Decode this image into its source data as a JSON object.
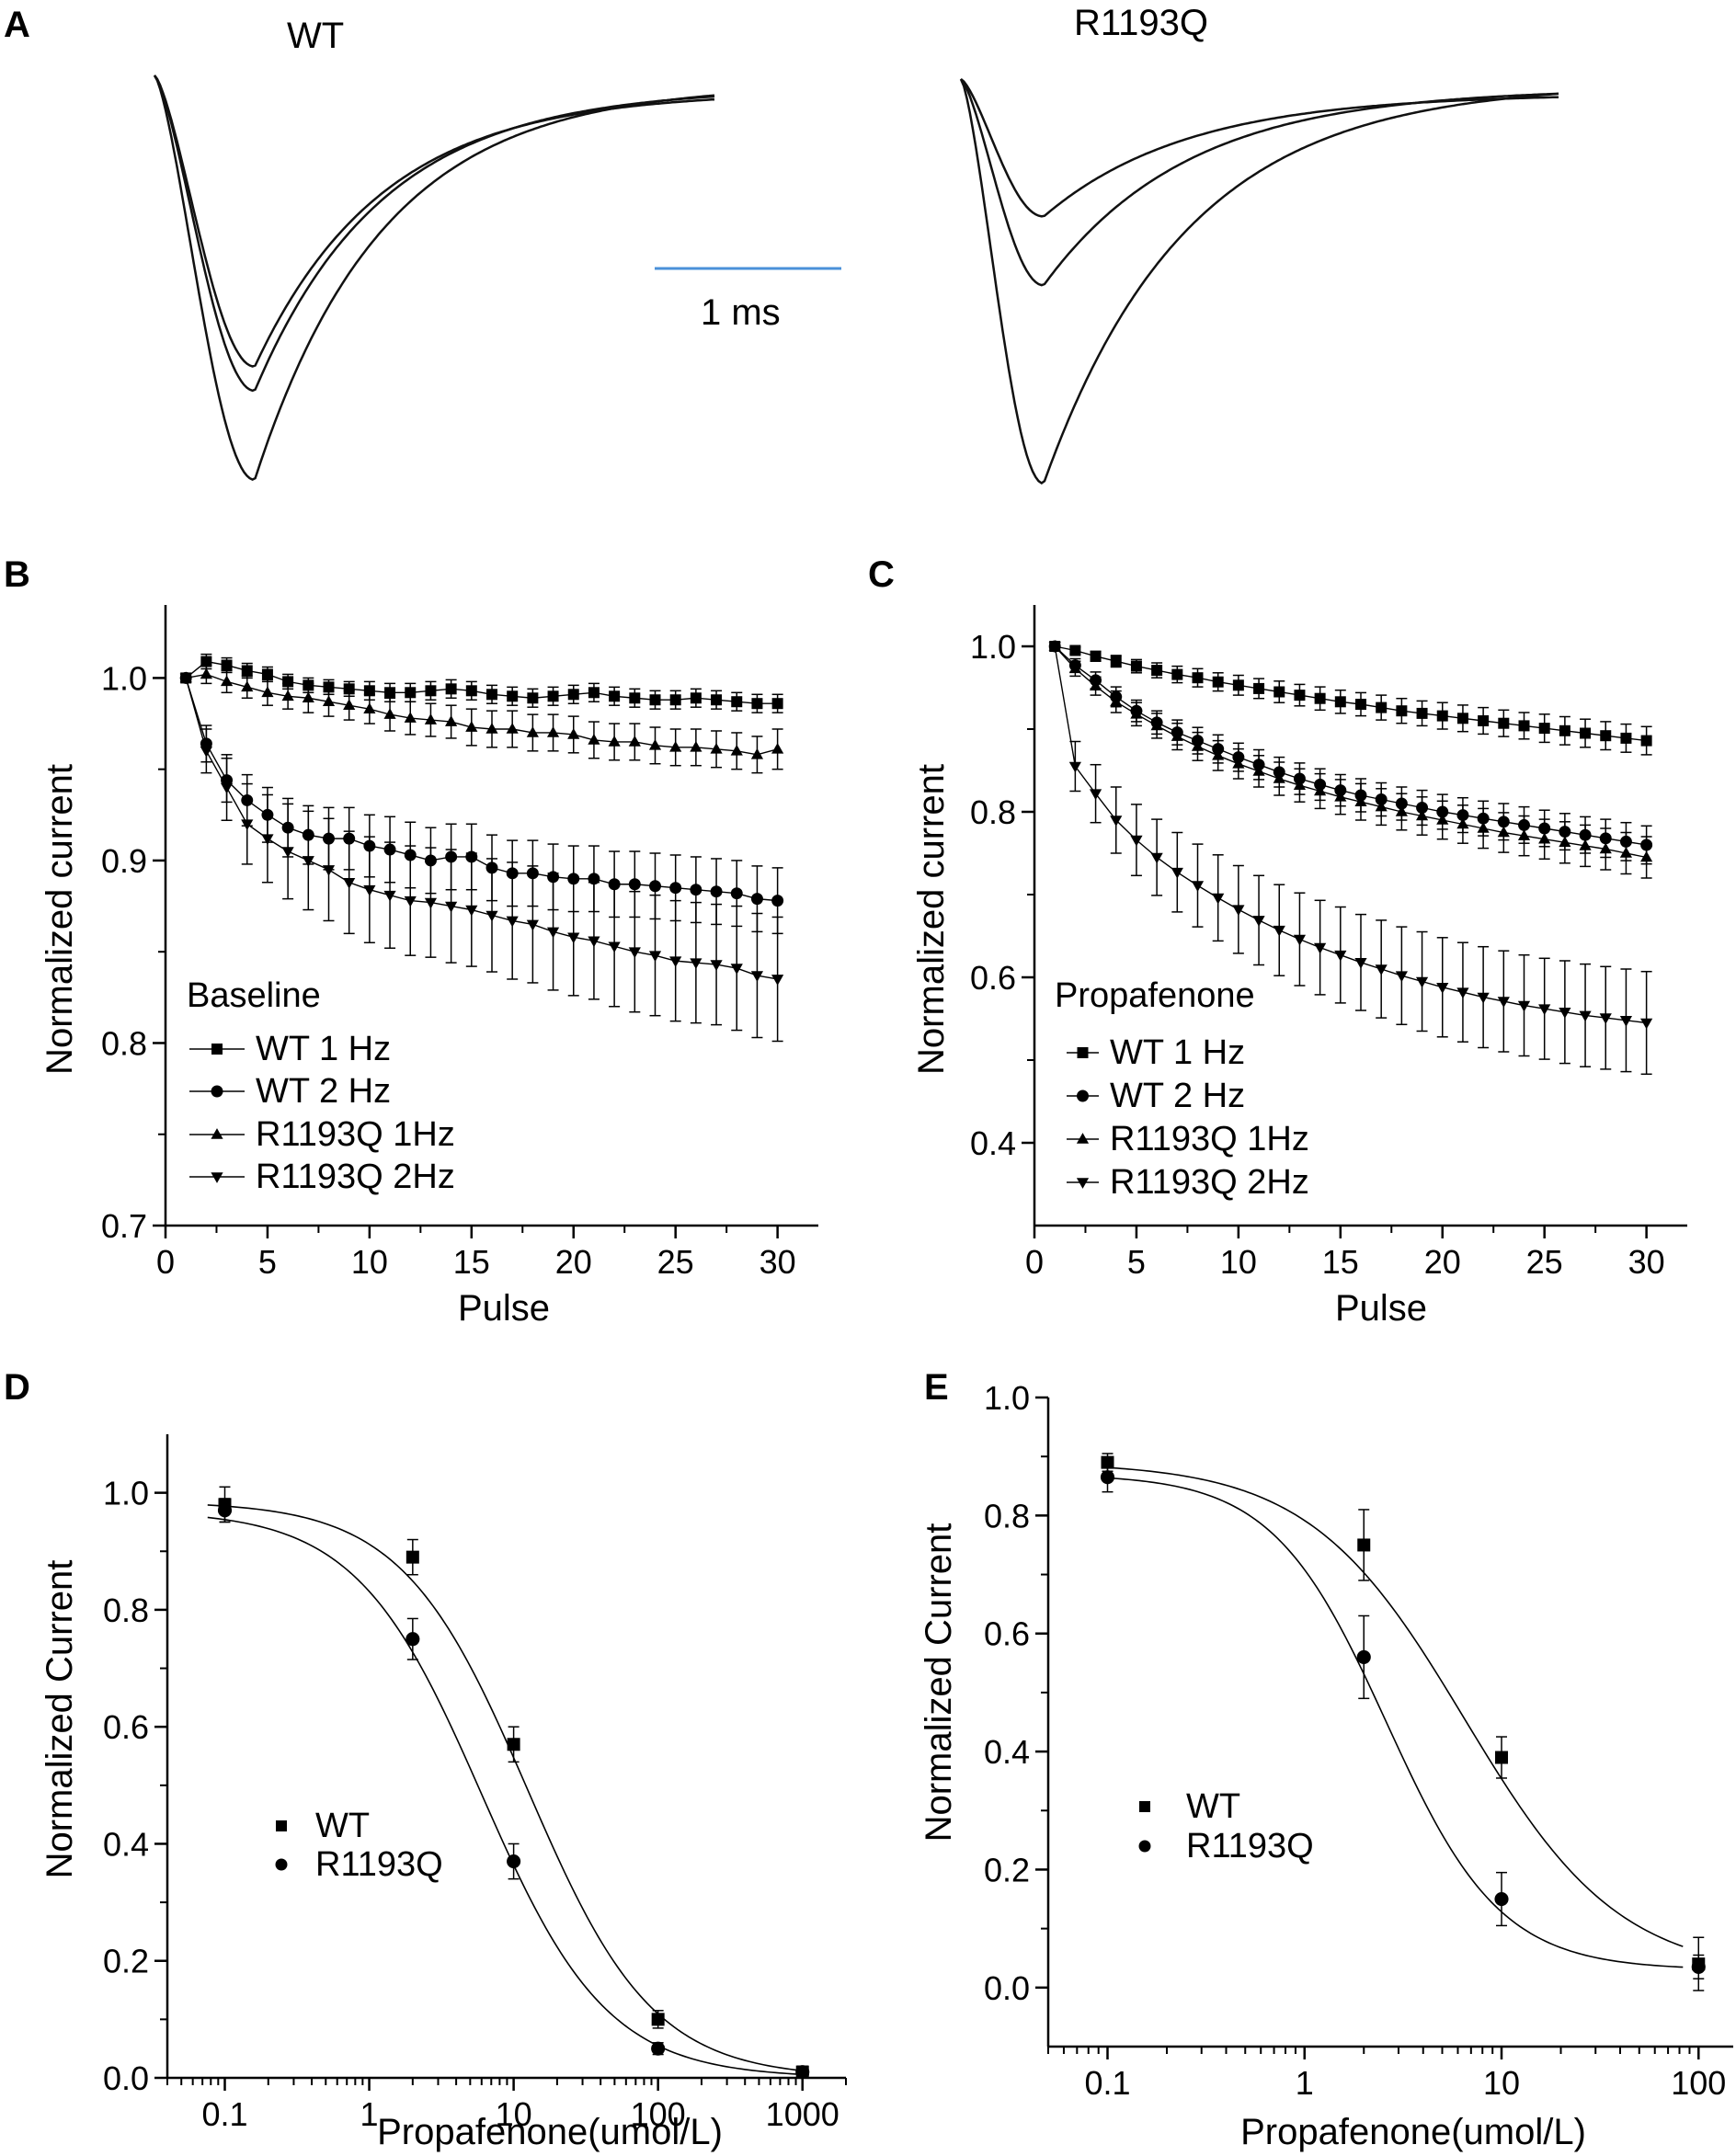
{
  "figure": {
    "panels": [
      {
        "id": "A",
        "letter": "A"
      },
      {
        "id": "B",
        "letter": "B"
      },
      {
        "id": "C",
        "letter": "C"
      },
      {
        "id": "D",
        "letter": "D"
      },
      {
        "id": "E",
        "letter": "E"
      }
    ]
  },
  "panel_a": {
    "wt_title": "WT",
    "mutant_title": "R1193Q",
    "scalebar_label": "1 ms",
    "scalebar_color": "#4a90d9",
    "wt_trace_peaks": [
      1.0,
      0.78,
      0.72
    ],
    "mutant_trace_peaks": [
      1.0,
      0.51,
      0.34
    ]
  },
  "chart_data": [
    {
      "id": "B",
      "type": "line",
      "title": "",
      "xlabel": "Pulse",
      "ylabel": "Normalized current",
      "xlim": [
        0,
        32
      ],
      "ylim": [
        0.7,
        1.04
      ],
      "xticks": [
        0,
        5,
        10,
        15,
        20,
        25,
        30
      ],
      "yticks": [
        0.7,
        0.8,
        0.9,
        1.0
      ],
      "ytick_labels": [
        "0.7",
        "0.8",
        "0.9",
        "1.0"
      ],
      "legend_title": "Baseline",
      "legend_position": "bottom-left",
      "x": [
        1,
        2,
        3,
        4,
        5,
        6,
        7,
        8,
        9,
        10,
        11,
        12,
        13,
        14,
        15,
        16,
        17,
        18,
        19,
        20,
        21,
        22,
        23,
        24,
        25,
        26,
        27,
        28,
        29,
        30
      ],
      "series": [
        {
          "name": "WT 1 Hz",
          "marker": "square",
          "values": [
            1.0,
            1.009,
            1.007,
            1.004,
            1.002,
            0.998,
            0.996,
            0.995,
            0.994,
            0.993,
            0.992,
            0.992,
            0.993,
            0.994,
            0.993,
            0.991,
            0.99,
            0.989,
            0.99,
            0.991,
            0.992,
            0.99,
            0.989,
            0.988,
            0.988,
            0.989,
            0.988,
            0.987,
            0.986,
            0.986
          ],
          "errors": [
            0,
            0.004,
            0.004,
            0.004,
            0.004,
            0.004,
            0.004,
            0.004,
            0.004,
            0.005,
            0.005,
            0.005,
            0.005,
            0.005,
            0.005,
            0.005,
            0.005,
            0.005,
            0.005,
            0.005,
            0.005,
            0.005,
            0.005,
            0.005,
            0.005,
            0.005,
            0.005,
            0.005,
            0.005,
            0.005
          ]
        },
        {
          "name": "WT 2 Hz",
          "marker": "circle",
          "values": [
            1.0,
            0.964,
            0.944,
            0.933,
            0.925,
            0.918,
            0.914,
            0.912,
            0.912,
            0.908,
            0.906,
            0.903,
            0.9,
            0.902,
            0.902,
            0.896,
            0.893,
            0.893,
            0.891,
            0.89,
            0.89,
            0.887,
            0.887,
            0.886,
            0.885,
            0.884,
            0.883,
            0.882,
            0.879,
            0.878
          ],
          "errors": [
            0,
            0.01,
            0.012,
            0.014,
            0.015,
            0.016,
            0.016,
            0.017,
            0.017,
            0.017,
            0.018,
            0.018,
            0.018,
            0.018,
            0.018,
            0.018,
            0.018,
            0.018,
            0.018,
            0.018,
            0.018,
            0.018,
            0.018,
            0.018,
            0.018,
            0.018,
            0.018,
            0.018,
            0.018,
            0.018
          ]
        },
        {
          "name": "R1193Q 1Hz",
          "marker": "triangle-up",
          "values": [
            1.0,
            1.002,
            0.998,
            0.995,
            0.992,
            0.99,
            0.989,
            0.987,
            0.985,
            0.983,
            0.98,
            0.978,
            0.977,
            0.976,
            0.973,
            0.972,
            0.972,
            0.97,
            0.97,
            0.969,
            0.966,
            0.965,
            0.965,
            0.963,
            0.962,
            0.962,
            0.961,
            0.96,
            0.958,
            0.961
          ],
          "errors": [
            0,
            0.005,
            0.006,
            0.006,
            0.007,
            0.007,
            0.008,
            0.008,
            0.008,
            0.008,
            0.009,
            0.009,
            0.009,
            0.009,
            0.01,
            0.01,
            0.01,
            0.01,
            0.01,
            0.01,
            0.01,
            0.01,
            0.01,
            0.01,
            0.01,
            0.01,
            0.01,
            0.01,
            0.01,
            0.011
          ]
        },
        {
          "name": "R1193Q 2Hz",
          "marker": "triangle-down",
          "values": [
            1.0,
            0.96,
            0.94,
            0.92,
            0.912,
            0.905,
            0.9,
            0.895,
            0.888,
            0.884,
            0.881,
            0.878,
            0.877,
            0.875,
            0.873,
            0.87,
            0.867,
            0.865,
            0.861,
            0.858,
            0.856,
            0.853,
            0.85,
            0.848,
            0.845,
            0.844,
            0.843,
            0.841,
            0.837,
            0.835
          ],
          "errors": [
            0,
            0.012,
            0.018,
            0.022,
            0.024,
            0.026,
            0.027,
            0.028,
            0.028,
            0.029,
            0.029,
            0.03,
            0.03,
            0.031,
            0.031,
            0.031,
            0.032,
            0.032,
            0.032,
            0.032,
            0.032,
            0.033,
            0.033,
            0.033,
            0.033,
            0.033,
            0.033,
            0.034,
            0.034,
            0.034
          ]
        }
      ]
    },
    {
      "id": "C",
      "type": "line",
      "title": "",
      "xlabel": "Pulse",
      "ylabel": "Normalized current",
      "xlim": [
        0,
        32
      ],
      "ylim": [
        0.3,
        1.05
      ],
      "xticks": [
        0,
        5,
        10,
        15,
        20,
        25,
        30
      ],
      "yticks": [
        0.4,
        0.6,
        0.8,
        1.0
      ],
      "ytick_labels": [
        "0.4",
        "0.6",
        "0.8",
        "1.0"
      ],
      "legend_title": "Propafenone",
      "legend_position": "bottom-left",
      "x": [
        1,
        2,
        3,
        4,
        5,
        6,
        7,
        8,
        9,
        10,
        11,
        12,
        13,
        14,
        15,
        16,
        17,
        18,
        19,
        20,
        21,
        22,
        23,
        24,
        25,
        26,
        27,
        28,
        29,
        30
      ],
      "series": [
        {
          "name": "WT 1 Hz",
          "marker": "square",
          "values": [
            1.0,
            0.995,
            0.988,
            0.982,
            0.976,
            0.971,
            0.966,
            0.962,
            0.957,
            0.953,
            0.949,
            0.945,
            0.941,
            0.937,
            0.933,
            0.93,
            0.926,
            0.922,
            0.919,
            0.916,
            0.913,
            0.91,
            0.907,
            0.904,
            0.901,
            0.898,
            0.895,
            0.892,
            0.889,
            0.886
          ],
          "errors": [
            0,
            0.004,
            0.006,
            0.007,
            0.008,
            0.009,
            0.01,
            0.011,
            0.011,
            0.012,
            0.012,
            0.013,
            0.013,
            0.014,
            0.014,
            0.014,
            0.015,
            0.015,
            0.015,
            0.016,
            0.016,
            0.016,
            0.016,
            0.016,
            0.017,
            0.017,
            0.017,
            0.017,
            0.017,
            0.017
          ]
        },
        {
          "name": "WT 2 Hz",
          "marker": "circle",
          "values": [
            1.0,
            0.977,
            0.959,
            0.939,
            0.922,
            0.908,
            0.896,
            0.886,
            0.876,
            0.866,
            0.857,
            0.848,
            0.84,
            0.833,
            0.826,
            0.82,
            0.815,
            0.81,
            0.805,
            0.8,
            0.796,
            0.792,
            0.788,
            0.784,
            0.78,
            0.776,
            0.772,
            0.768,
            0.764,
            0.76
          ],
          "errors": [
            0,
            0.008,
            0.01,
            0.012,
            0.013,
            0.014,
            0.015,
            0.016,
            0.017,
            0.017,
            0.018,
            0.018,
            0.019,
            0.019,
            0.019,
            0.02,
            0.02,
            0.02,
            0.021,
            0.021,
            0.021,
            0.021,
            0.022,
            0.022,
            0.022,
            0.022,
            0.022,
            0.023,
            0.023,
            0.023
          ]
        },
        {
          "name": "R1193Q 1Hz",
          "marker": "triangle-up",
          "values": [
            1.0,
            0.973,
            0.952,
            0.933,
            0.918,
            0.904,
            0.891,
            0.879,
            0.868,
            0.858,
            0.849,
            0.84,
            0.832,
            0.825,
            0.818,
            0.812,
            0.806,
            0.8,
            0.795,
            0.79,
            0.785,
            0.78,
            0.775,
            0.771,
            0.767,
            0.763,
            0.759,
            0.755,
            0.75,
            0.745
          ],
          "errors": [
            0,
            0.009,
            0.011,
            0.013,
            0.014,
            0.015,
            0.016,
            0.017,
            0.018,
            0.018,
            0.019,
            0.02,
            0.02,
            0.021,
            0.021,
            0.022,
            0.022,
            0.022,
            0.023,
            0.023,
            0.023,
            0.024,
            0.024,
            0.024,
            0.024,
            0.025,
            0.025,
            0.025,
            0.025,
            0.025
          ]
        },
        {
          "name": "R1193Q 2Hz",
          "marker": "triangle-down",
          "values": [
            1.0,
            0.855,
            0.822,
            0.79,
            0.766,
            0.745,
            0.727,
            0.711,
            0.696,
            0.682,
            0.669,
            0.657,
            0.646,
            0.636,
            0.627,
            0.618,
            0.61,
            0.602,
            0.595,
            0.588,
            0.582,
            0.576,
            0.571,
            0.566,
            0.562,
            0.558,
            0.554,
            0.551,
            0.548,
            0.545
          ],
          "errors": [
            0,
            0.03,
            0.035,
            0.04,
            0.043,
            0.046,
            0.048,
            0.05,
            0.052,
            0.053,
            0.054,
            0.055,
            0.056,
            0.057,
            0.058,
            0.058,
            0.059,
            0.059,
            0.06,
            0.06,
            0.06,
            0.061,
            0.061,
            0.061,
            0.061,
            0.062,
            0.062,
            0.062,
            0.062,
            0.062
          ]
        }
      ]
    },
    {
      "id": "D",
      "type": "scatter",
      "title": "",
      "xlabel": "Propafenone(umol/L)",
      "ylabel": "Normalized Current",
      "xscale": "log",
      "xlim": [
        0.04,
        2000
      ],
      "ylim": [
        0.0,
        1.1
      ],
      "xticks": [
        0.1,
        1,
        10,
        100,
        1000
      ],
      "xtick_labels": [
        "0.1",
        "1",
        "10",
        "100",
        "1000"
      ],
      "yticks": [
        0.0,
        0.2,
        0.4,
        0.6,
        0.8,
        1.0
      ],
      "ytick_labels": [
        "0.0",
        "0.2",
        "0.4",
        "0.6",
        "0.8",
        "1.0"
      ],
      "legend_position": "middle-left",
      "series": [
        {
          "name": "WT",
          "marker": "square",
          "x": [
            0.1,
            2,
            10,
            100,
            1000
          ],
          "values": [
            0.98,
            0.89,
            0.57,
            0.1,
            0.01
          ],
          "errors": [
            0.03,
            0.03,
            0.03,
            0.015,
            0.01
          ],
          "fit": {
            "top": 0.985,
            "bottom": 0.0,
            "ic50": 12.5,
            "hill": 1.0
          }
        },
        {
          "name": "R1193Q",
          "marker": "circle",
          "x": [
            0.1,
            2,
            10,
            100,
            1000
          ],
          "values": [
            0.97,
            0.75,
            0.37,
            0.05,
            0.01
          ],
          "errors": [
            0.02,
            0.035,
            0.03,
            0.01,
            0.01
          ],
          "fit": {
            "top": 0.97,
            "bottom": 0.0,
            "ic50": 6.0,
            "hill": 1.0
          }
        }
      ]
    },
    {
      "id": "E",
      "type": "scatter",
      "title": "",
      "xlabel": "Propafenone(umol/L)",
      "ylabel": "Normalized Current",
      "xscale": "log",
      "xlim": [
        0.05,
        150
      ],
      "ylim": [
        -0.1,
        1.0
      ],
      "xticks": [
        0.1,
        1,
        10,
        100
      ],
      "xtick_labels": [
        "0.1",
        "1",
        "10",
        "100"
      ],
      "yticks": [
        0.0,
        0.2,
        0.4,
        0.6,
        0.8,
        1.0
      ],
      "ytick_labels": [
        "0.0",
        "0.2",
        "0.4",
        "0.6",
        "0.8",
        "1.0"
      ],
      "legend_position": "middle-left",
      "series": [
        {
          "name": "WT",
          "marker": "square",
          "x": [
            0.1,
            2,
            10,
            100
          ],
          "values": [
            0.89,
            0.75,
            0.39,
            0.04
          ],
          "errors": [
            0.015,
            0.06,
            0.035,
            0.045
          ],
          "fit": {
            "top": 0.89,
            "bottom": 0.02,
            "ic50": 6.5,
            "hill": 1.1
          }
        },
        {
          "name": "R1193Q",
          "marker": "circle",
          "x": [
            0.1,
            2,
            10,
            100
          ],
          "values": [
            0.865,
            0.56,
            0.15,
            0.035
          ],
          "errors": [
            0.025,
            0.07,
            0.045,
            0.02
          ],
          "fit": {
            "top": 0.87,
            "bottom": 0.03,
            "ic50": 2.6,
            "hill": 1.5
          }
        }
      ]
    }
  ]
}
